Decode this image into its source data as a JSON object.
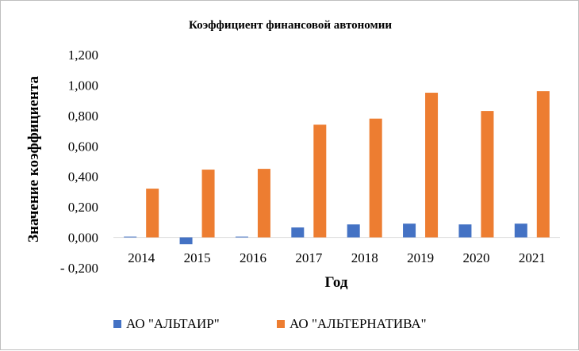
{
  "chart_data": {
    "type": "bar",
    "title": "Коэффициент финансовой автономии",
    "xlabel": "Год",
    "ylabel": "Значение коэффициента",
    "categories": [
      "2014",
      "2015",
      "2016",
      "2017",
      "2018",
      "2019",
      "2020",
      "2021"
    ],
    "series": [
      {
        "name": "АО \"АЛЬТАИР\"",
        "color": "#4472C4",
        "values": [
          0.005,
          -0.045,
          0.005,
          0.065,
          0.085,
          0.09,
          0.085,
          0.09
        ]
      },
      {
        "name": "АО \"АЛЬТЕРНАТИВА\"",
        "color": "#ED7D31",
        "values": [
          0.32,
          0.445,
          0.45,
          0.74,
          0.78,
          0.95,
          0.83,
          0.96
        ]
      }
    ],
    "ylim": [
      -0.2,
      1.2
    ],
    "yticks": [
      -0.2,
      0.0,
      0.2,
      0.4,
      0.6,
      0.8,
      1.0,
      1.2
    ],
    "ytick_labels": [
      "- 0,200",
      "0,000",
      "0,200",
      "0,400",
      "0,600",
      "0,800",
      "1,000",
      "1,200"
    ],
    "grid": false,
    "legend_position": "bottom"
  }
}
